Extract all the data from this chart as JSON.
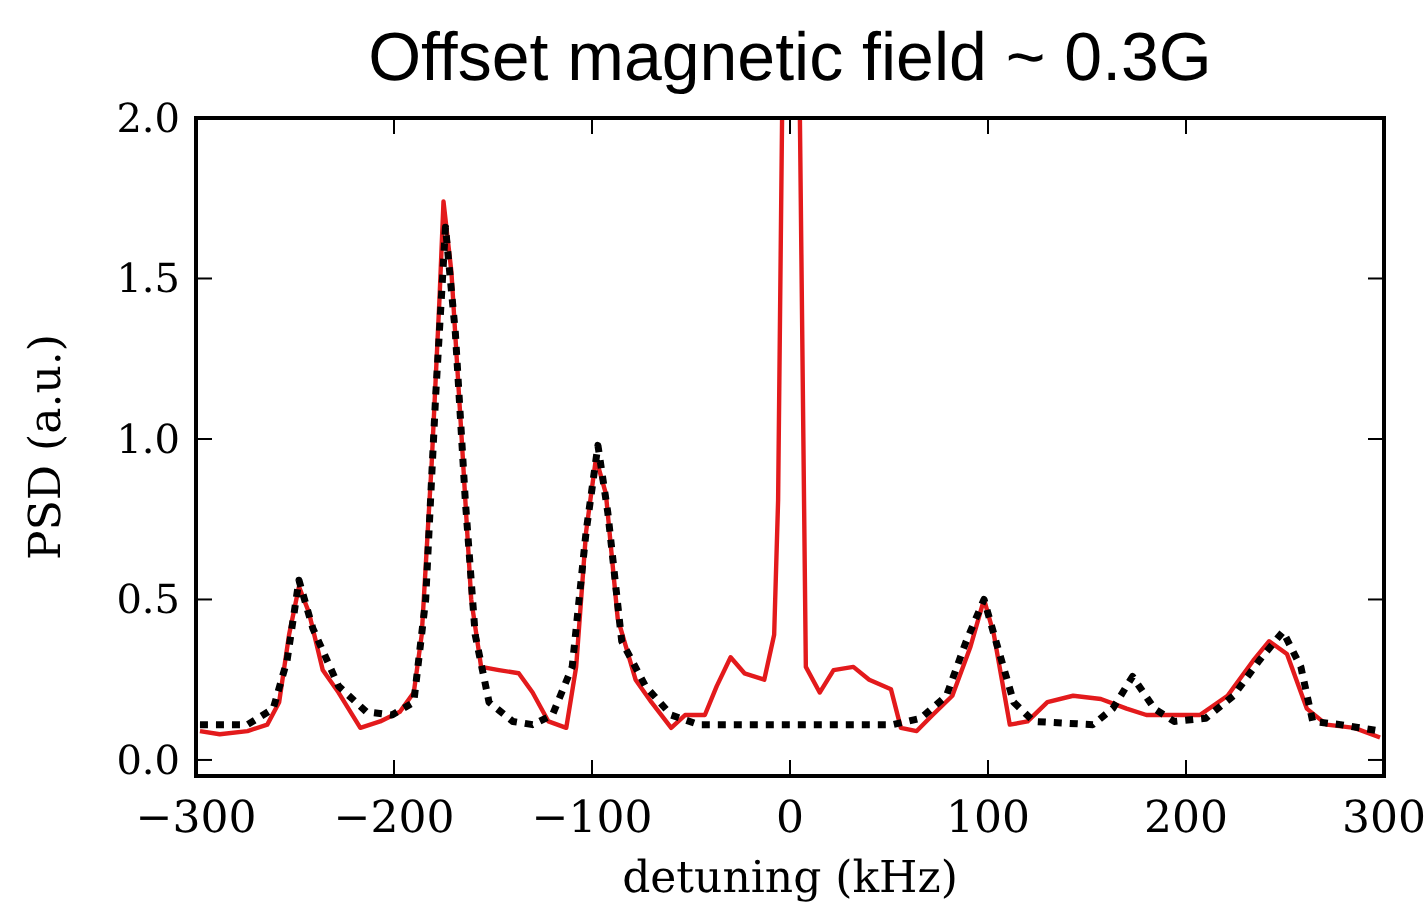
{
  "chart_data": {
    "type": "line",
    "title": "Offset magnetic field ~ 0.3G",
    "xlabel": "detuning (kHz)",
    "ylabel": "PSD (a.u.)",
    "xlim": [
      -300,
      300
    ],
    "xticks": [
      {
        "value": -300,
        "label": "−300"
      },
      {
        "value": -200,
        "label": "−200"
      },
      {
        "value": -100,
        "label": "−100"
      },
      0,
      100,
      200,
      300
    ],
    "ylim": [
      -0.05,
      2.0
    ],
    "yticks": [
      {
        "value": 0,
        "label": "0.0"
      },
      0.5,
      {
        "value": 1,
        "label": "1.0"
      },
      1.5,
      {
        "value": 2,
        "label": "2.0"
      }
    ],
    "grid": false,
    "series": [
      {
        "color": "#e31a1c",
        "line_style": "solid",
        "x": [
          -298,
          -288,
          -274,
          -264,
          -258,
          -253,
          -248,
          -243,
          -236,
          -228,
          -217,
          -207,
          -197,
          -190,
          -186,
          -181,
          -177,
          -175,
          -171,
          -166,
          -161,
          -156,
          -147,
          -137,
          -130,
          -122,
          -113,
          -108,
          -103,
          -98,
          -93,
          -87,
          -78,
          -70,
          -60,
          -53,
          -43,
          -37,
          -30,
          -23,
          -13,
          -8,
          -6,
          -4,
          0,
          5,
          8,
          15,
          22,
          32,
          40,
          51,
          56,
          64,
          72,
          82,
          91,
          98,
          103,
          111,
          120,
          130,
          143,
          157,
          170,
          180,
          194,
          207,
          221,
          234,
          242,
          251,
          261,
          271,
          285,
          298
        ],
        "values": [
          0.09,
          0.08,
          0.09,
          0.11,
          0.18,
          0.39,
          0.54,
          0.46,
          0.28,
          0.21,
          0.1,
          0.12,
          0.15,
          0.21,
          0.39,
          0.92,
          1.44,
          1.74,
          1.52,
          1.02,
          0.5,
          0.29,
          0.28,
          0.27,
          0.21,
          0.12,
          0.1,
          0.29,
          0.71,
          0.94,
          0.83,
          0.44,
          0.25,
          0.18,
          0.1,
          0.14,
          0.14,
          0.23,
          0.32,
          0.27,
          0.25,
          0.39,
          0.81,
          2.0,
          null,
          2.0,
          0.29,
          0.21,
          0.28,
          0.29,
          0.25,
          0.22,
          0.1,
          0.09,
          0.14,
          0.2,
          0.35,
          0.5,
          0.39,
          0.11,
          0.12,
          0.18,
          0.2,
          0.19,
          0.16,
          0.14,
          0.14,
          0.14,
          0.2,
          0.31,
          0.37,
          0.33,
          0.16,
          0.11,
          0.1,
          0.07
        ]
      },
      {
        "color": "#000000",
        "line_style": "dotted",
        "x": [
          -298,
          -274,
          -261,
          -254,
          -248,
          -241,
          -228,
          -214,
          -201,
          -190,
          -184,
          -179,
          -174,
          -169,
          -164,
          -159,
          -152,
          -140,
          -130,
          -120,
          -110,
          -103,
          -97,
          -92,
          -85,
          -73,
          -60,
          -46,
          -6,
          52,
          66,
          79,
          89,
          98,
          104,
          113,
          123,
          153,
          163,
          173,
          184,
          194,
          210,
          224,
          237,
          249,
          258,
          264,
          278,
          298
        ],
        "values": [
          0.11,
          0.11,
          0.16,
          0.31,
          0.56,
          0.41,
          0.23,
          0.15,
          0.14,
          0.18,
          0.5,
          1.13,
          1.66,
          1.33,
          0.81,
          0.39,
          0.18,
          0.12,
          0.11,
          0.14,
          0.29,
          0.71,
          0.98,
          0.77,
          0.37,
          0.23,
          0.14,
          0.11,
          0.11,
          0.11,
          0.13,
          0.2,
          0.37,
          0.5,
          0.37,
          0.18,
          0.12,
          0.11,
          0.16,
          0.26,
          0.16,
          0.12,
          0.13,
          0.2,
          0.31,
          0.4,
          0.29,
          0.12,
          0.11,
          0.09
        ]
      }
    ]
  }
}
